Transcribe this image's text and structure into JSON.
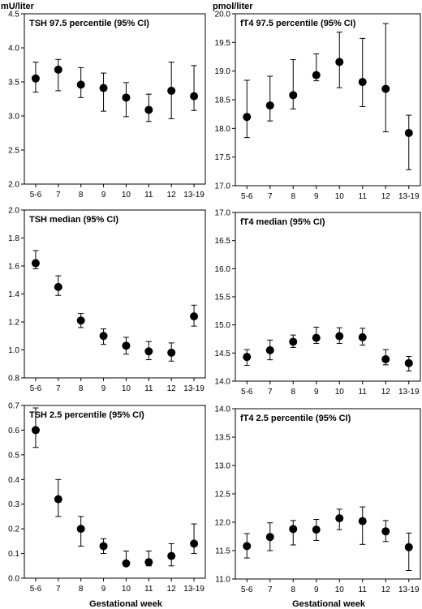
{
  "units": {
    "left": "mU/liter",
    "right": "pmol/liter"
  },
  "xlabel": "Gestational week",
  "chart_data": [
    {
      "type": "scatter",
      "error_bars": "95% CI",
      "title": "TSH 97.5 percentile (95% CI)",
      "categories": [
        "5-6",
        "7",
        "8",
        "9",
        "10",
        "11",
        "12",
        "13-19"
      ],
      "values": [
        3.55,
        3.68,
        3.46,
        3.41,
        3.27,
        3.09,
        3.37,
        3.29
      ],
      "lower": [
        3.35,
        3.37,
        3.27,
        3.07,
        2.99,
        2.92,
        2.96,
        3.08
      ],
      "upper": [
        3.79,
        3.83,
        3.71,
        3.63,
        3.49,
        3.32,
        3.79,
        3.74
      ],
      "ylim": [
        2.0,
        4.5
      ],
      "yticks": [
        "2.0",
        "2.5",
        "3.0",
        "3.5",
        "4.0",
        "4.5"
      ]
    },
    {
      "type": "scatter",
      "error_bars": "95% CI",
      "title": "fT4 97.5 percentile (95% CI)",
      "categories": [
        "5-6",
        "7",
        "8",
        "9",
        "10",
        "11",
        "12",
        "13-19"
      ],
      "values": [
        18.2,
        18.4,
        18.58,
        18.93,
        19.16,
        18.81,
        18.69,
        17.92
      ],
      "lower": [
        17.84,
        18.13,
        18.34,
        18.83,
        18.71,
        18.38,
        17.94,
        17.28
      ],
      "upper": [
        18.84,
        18.91,
        19.2,
        19.3,
        19.68,
        19.57,
        19.83,
        18.23
      ],
      "ylim": [
        17.0,
        20.0
      ],
      "yticks": [
        "17.0",
        "17.5",
        "18.0",
        "18.5",
        "19.0",
        "19.5",
        "20.0"
      ]
    },
    {
      "type": "scatter",
      "error_bars": "95% CI",
      "title": "TSH median (95% CI)",
      "categories": [
        "5-6",
        "7",
        "8",
        "9",
        "10",
        "11",
        "12",
        "13-19"
      ],
      "values": [
        1.62,
        1.45,
        1.21,
        1.1,
        1.03,
        0.99,
        0.98,
        1.24
      ],
      "lower": [
        1.58,
        1.39,
        1.16,
        1.04,
        0.97,
        0.93,
        0.92,
        1.17
      ],
      "upper": [
        1.71,
        1.53,
        1.26,
        1.15,
        1.09,
        1.06,
        1.05,
        1.32
      ],
      "ylim": [
        0.8,
        2.0
      ],
      "yticks": [
        "0.8",
        "1.0",
        "1.2",
        "1.4",
        "1.6",
        "1.8",
        "2.0"
      ]
    },
    {
      "type": "scatter",
      "error_bars": "95% CI",
      "title": "fT4 median (95% CI)",
      "categories": [
        "5-6",
        "7",
        "8",
        "9",
        "10",
        "11",
        "12",
        "13-19"
      ],
      "values": [
        14.43,
        14.55,
        14.7,
        14.77,
        14.8,
        14.78,
        14.39,
        14.32
      ],
      "lower": [
        14.28,
        14.38,
        14.6,
        14.67,
        14.67,
        14.64,
        14.29,
        14.18
      ],
      "upper": [
        14.56,
        14.73,
        14.82,
        14.96,
        14.95,
        14.94,
        14.56,
        14.44
      ],
      "ylim": [
        14.0,
        17.0
      ],
      "yticks": [
        "14.0",
        "14.5",
        "15.0",
        "15.5",
        "16.0",
        "16.5",
        "17.0"
      ]
    },
    {
      "type": "scatter",
      "error_bars": "95% CI",
      "title": "TSH 2.5 percentile (95% CI)",
      "categories": [
        "5-6",
        "7",
        "8",
        "9",
        "10",
        "11",
        "12",
        "13-19"
      ],
      "values": [
        0.6,
        0.32,
        0.2,
        0.13,
        0.06,
        0.065,
        0.09,
        0.14
      ],
      "lower": [
        0.53,
        0.25,
        0.13,
        0.1,
        0.05,
        0.05,
        0.05,
        0.1
      ],
      "upper": [
        0.69,
        0.4,
        0.25,
        0.16,
        0.11,
        0.11,
        0.14,
        0.22
      ],
      "ylim": [
        0.0,
        0.7
      ],
      "yticks": [
        "0.0",
        "0.1",
        "0.2",
        "0.3",
        "0.4",
        "0.5",
        "0.6",
        "0.7"
      ]
    },
    {
      "type": "scatter",
      "error_bars": "95% CI",
      "title": "fT4 2.5 percentile (95% CI)",
      "categories": [
        "5-6",
        "7",
        "8",
        "9",
        "10",
        "11",
        "12",
        "13-19"
      ],
      "values": [
        11.58,
        11.74,
        11.88,
        11.87,
        12.07,
        12.02,
        11.84,
        11.56
      ],
      "lower": [
        11.37,
        11.5,
        11.6,
        11.68,
        11.87,
        11.61,
        11.66,
        11.15
      ],
      "upper": [
        11.8,
        11.99,
        12.03,
        12.05,
        12.23,
        12.27,
        12.03,
        11.81
      ],
      "ylim": [
        11.0,
        14.0
      ],
      "yticks": [
        "11.0",
        "11.5",
        "12.0",
        "12.5",
        "13.0",
        "13.5",
        "14.0"
      ]
    }
  ]
}
